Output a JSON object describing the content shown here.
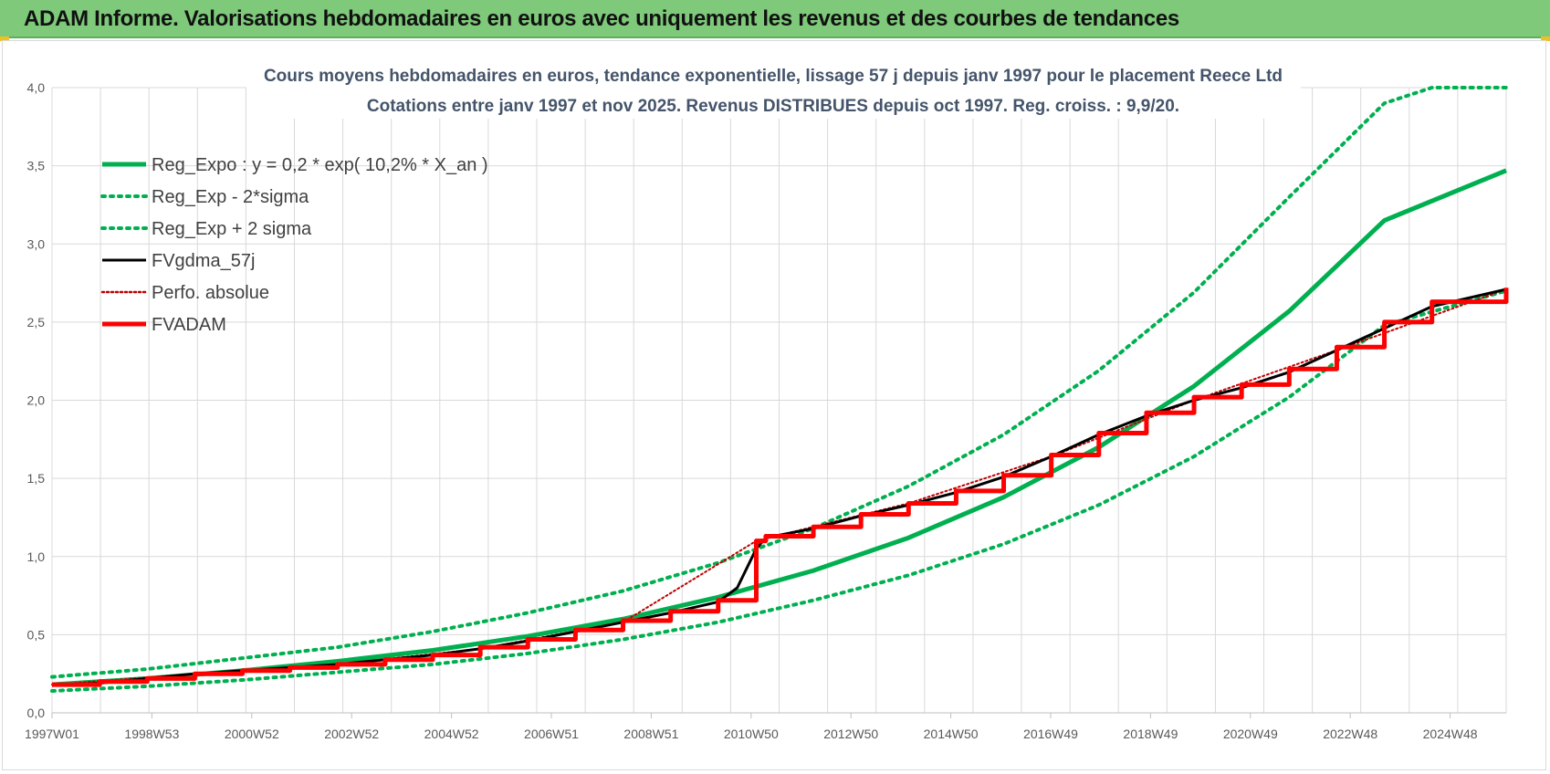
{
  "header": {
    "title": "ADAM Informe. Valorisations hebdomadaires en euros avec uniquement les revenus et des courbes de tendances",
    "background_color": "#7ec97a"
  },
  "chart_data": {
    "type": "line",
    "title_line1": "Cours moyens hebdomadaires en euros, tendance exponentielle, lissage 57 j depuis janv 1997  pour le  placement Reece Ltd",
    "title_line2": "Cotations entre janv 1997 et nov 2025. Revenus DISTRIBUES depuis oct 1997.  Reg. croiss. : 9,9/20.",
    "x_tick_labels": [
      "1997W01",
      "1998W53",
      "2000W52",
      "2002W52",
      "2004W52",
      "2006W51",
      "2008W51",
      "2010W50",
      "2012W50",
      "2014W50",
      "2016W49",
      "2018W49",
      "2020W49",
      "2022W48",
      "2024W48"
    ],
    "x_range_years": [
      1997.0,
      2027.56
    ],
    "y_tick_labels": [
      "0,0",
      "0,5",
      "1,0",
      "1,5",
      "2,0",
      "2,5",
      "3,0",
      "3,5",
      "4,0"
    ],
    "ylim": [
      0,
      4
    ],
    "grid": true,
    "legend_position": "top-left",
    "series": [
      {
        "name": "Reg_Expo : y = 0,2 * exp( 10,2% *  X_an )",
        "color": "#00b050",
        "style": "solid",
        "width": 5,
        "x": [
          1997,
          1999,
          2001,
          2003,
          2005,
          2007,
          2009,
          2011,
          2013,
          2015,
          2017,
          2019,
          2021,
          2023,
          2025,
          2027.56
        ],
        "y": [
          0.18,
          0.22,
          0.27,
          0.33,
          0.4,
          0.49,
          0.6,
          0.74,
          0.91,
          1.12,
          1.38,
          1.7,
          2.09,
          2.57,
          3.15,
          3.47
        ]
      },
      {
        "name": "Reg_Exp - 2*sigma",
        "color": "#00b050",
        "style": "dotted",
        "width": 4,
        "x": [
          1997,
          1999,
          2001,
          2003,
          2005,
          2007,
          2009,
          2011,
          2013,
          2015,
          2017,
          2019,
          2021,
          2023,
          2025,
          2027.56
        ],
        "y": [
          0.14,
          0.17,
          0.21,
          0.26,
          0.31,
          0.38,
          0.47,
          0.58,
          0.72,
          0.88,
          1.08,
          1.33,
          1.64,
          2.02,
          2.48,
          2.7
        ]
      },
      {
        "name": "Reg_Exp + 2 sigma",
        "color": "#00b050",
        "style": "dotted",
        "width": 4,
        "x": [
          1997,
          1999,
          2001,
          2003,
          2005,
          2007,
          2009,
          2011,
          2013,
          2015,
          2017,
          2019,
          2021,
          2023,
          2025,
          2026,
          2027.56
        ],
        "y": [
          0.23,
          0.28,
          0.35,
          0.42,
          0.52,
          0.64,
          0.78,
          0.96,
          1.18,
          1.45,
          1.78,
          2.19,
          2.69,
          3.3,
          3.9,
          4.0,
          4.0
        ]
      },
      {
        "name": "FVgdma_57j",
        "color": "#000000",
        "style": "solid",
        "width": 3,
        "x": [
          1997,
          1998,
          1999,
          2000,
          2001,
          2002,
          2003,
          2004,
          2005,
          2006,
          2007,
          2008,
          2009,
          2010,
          2011,
          2011.4,
          2011.8,
          2012,
          2013,
          2014,
          2015,
          2016,
          2017,
          2018,
          2019,
          2020,
          2021,
          2022,
          2023,
          2024,
          2025,
          2026,
          2027.56
        ],
        "y": [
          0.18,
          0.19,
          0.22,
          0.25,
          0.27,
          0.29,
          0.31,
          0.34,
          0.37,
          0.41,
          0.46,
          0.52,
          0.58,
          0.64,
          0.71,
          0.8,
          1.05,
          1.12,
          1.18,
          1.26,
          1.33,
          1.41,
          1.51,
          1.64,
          1.78,
          1.9,
          2.0,
          2.08,
          2.18,
          2.32,
          2.46,
          2.6,
          2.71
        ]
      },
      {
        "name": "Perfo. absolue",
        "color": "#c00000",
        "style": "dotted",
        "width": 2,
        "x": [
          1997,
          2000,
          2003,
          2006,
          2009,
          2011.8,
          2015,
          2018,
          2021,
          2024,
          2027.56
        ],
        "y": [
          0.18,
          0.25,
          0.31,
          0.41,
          0.58,
          1.1,
          1.34,
          1.64,
          2.0,
          2.32,
          2.71
        ]
      },
      {
        "name": "FVADAM",
        "color": "#ff0000",
        "style": "step",
        "width": 5,
        "x": [
          1997,
          1998,
          1999,
          2000,
          2001,
          2002,
          2003,
          2004,
          2005,
          2006,
          2007,
          2008,
          2009,
          2010,
          2011,
          2011.8,
          2012,
          2013,
          2014,
          2015,
          2016,
          2017,
          2018,
          2019,
          2020,
          2021,
          2022,
          2023,
          2024,
          2025,
          2026,
          2027.56
        ],
        "y": [
          0.18,
          0.2,
          0.22,
          0.25,
          0.27,
          0.29,
          0.31,
          0.34,
          0.37,
          0.42,
          0.47,
          0.53,
          0.59,
          0.65,
          0.72,
          1.1,
          1.13,
          1.19,
          1.27,
          1.34,
          1.42,
          1.52,
          1.65,
          1.79,
          1.92,
          2.02,
          2.1,
          2.2,
          2.34,
          2.5,
          2.63,
          2.72
        ]
      }
    ]
  }
}
